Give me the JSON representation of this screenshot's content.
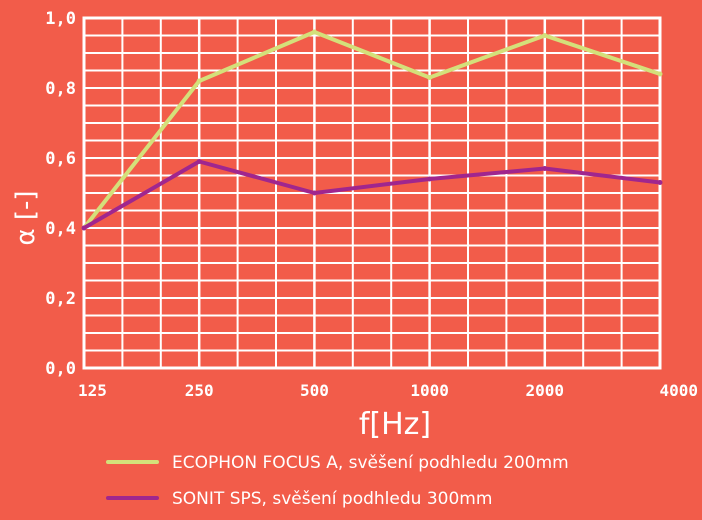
{
  "chart_data": {
    "type": "line",
    "categories": [
      "125",
      "250",
      "500",
      "1000",
      "2000",
      "4000"
    ],
    "x_minor": [
      "",
      "",
      "",
      "",
      "",
      "",
      "",
      "",
      "",
      "",
      ""
    ],
    "series": [
      {
        "name": "ECOPHON FOCUS A, svěšení podhledu 200mm",
        "color": "#d4e07a",
        "values": [
          0.4,
          0.82,
          0.96,
          0.83,
          0.95,
          0.84
        ]
      },
      {
        "name": "SONIT SPS, svěšení podhledu 300mm",
        "color": "#a0268e",
        "values": [
          0.4,
          0.59,
          0.5,
          0.54,
          0.57,
          0.53
        ]
      }
    ],
    "yticks": [
      "0,0",
      "0,2",
      "0,4",
      "0,6",
      "0,8",
      "1,0"
    ],
    "ylim": [
      0.0,
      1.0
    ],
    "xlabel": "f[Hz]",
    "ylabel": "α [-]",
    "grid": true,
    "legend_position": "bottom"
  }
}
